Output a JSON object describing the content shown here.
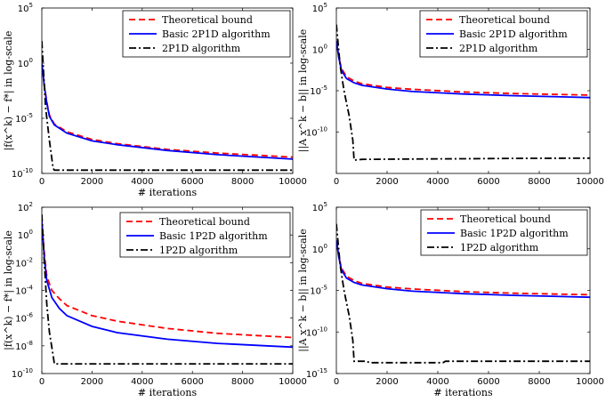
{
  "chart_data": [
    {
      "type": "line",
      "ylabel": "|f(x^k) − f*| in log-scale",
      "xlabel": "# iterations",
      "xlim": [
        0,
        10000
      ],
      "ylim": [
        1e-10,
        100000.0
      ],
      "yscale": "log",
      "x_ticks": [
        "0",
        "2000",
        "4000",
        "6000",
        "8000",
        "10000"
      ],
      "y_ticks": [
        {
          "v": 100000.0,
          "b": "10",
          "e": "5"
        },
        {
          "v": 1,
          "b": "10",
          "e": "0"
        },
        {
          "v": 1e-05,
          "b": "10",
          "e": "-5"
        },
        {
          "v": 1e-10,
          "b": "10",
          "e": "-10"
        }
      ],
      "legend_position": "top-right",
      "series": [
        {
          "name": "Theoretical bound",
          "color": "#ff0000",
          "dash": "dashed",
          "x": [
            1,
            100,
            200,
            300,
            500,
            1000,
            2000,
            3000,
            5000,
            7000,
            10000
          ],
          "y": [
            1,
            0.01,
            0.0003,
            2e-05,
            3e-06,
            6e-07,
            1.2e-07,
            5e-08,
            1.5e-08,
            7e-09,
            3e-09
          ]
        },
        {
          "name": "Basic 2P1D algorithm",
          "color": "#0000ff",
          "dash": "solid",
          "x": [
            1,
            100,
            200,
            300,
            500,
            1000,
            2000,
            3000,
            5000,
            7000,
            10000
          ],
          "y": [
            1,
            0.008,
            0.00025,
            1.5e-05,
            2.5e-06,
            4.5e-07,
            9e-08,
            4e-08,
            1.2e-08,
            5e-09,
            2e-09
          ]
        },
        {
          "name": "2P1D algorithm",
          "color": "#000000",
          "dash": "dashdot",
          "x": [
            1,
            150,
            300,
            450,
            500,
            1000,
            5000,
            10000
          ],
          "y": [
            100,
            0.0001,
            1e-07,
            3e-10,
            2e-10,
            2e-10,
            2e-10,
            2e-10
          ]
        }
      ]
    },
    {
      "type": "line",
      "ylabel": "||A x^k − b|| in log-scale",
      "xlabel": "",
      "xlim": [
        0,
        10000
      ],
      "ylim": [
        1e-15,
        100000.0
      ],
      "yscale": "log",
      "x_ticks": [
        "0",
        "2000",
        "4000",
        "6000",
        "8000",
        "10000"
      ],
      "y_ticks": [
        {
          "v": 100000.0,
          "b": "10",
          "e": "5"
        },
        {
          "v": 1,
          "b": "10",
          "e": "0"
        },
        {
          "v": 1e-05,
          "b": "10",
          "e": "-5"
        },
        {
          "v": 1e-10,
          "b": "10",
          "e": "-10"
        }
      ],
      "legend_position": "top-right",
      "series": [
        {
          "name": "Theoretical bound",
          "color": "#ff0000",
          "dash": "dashed",
          "x": [
            1,
            100,
            200,
            400,
            700,
            1000,
            2000,
            3000,
            5000,
            7000,
            10000
          ],
          "y": [
            10,
            0.1,
            0.005,
            0.0005,
            0.00015,
            7e-05,
            2.5e-05,
            1.5e-05,
            7e-06,
            4.5e-06,
            3e-06
          ]
        },
        {
          "name": "Basic 2P1D algorithm",
          "color": "#0000ff",
          "dash": "solid",
          "x": [
            1,
            100,
            200,
            400,
            700,
            1000,
            2000,
            3000,
            5000,
            7000,
            10000
          ],
          "y": [
            10,
            0.08,
            0.003,
            0.0003,
            9e-05,
            4.5e-05,
            1.6e-05,
            8e-06,
            4e-06,
            2.5e-06,
            1.5e-06
          ]
        },
        {
          "name": "2P1D algorithm",
          "color": "#000000",
          "dash": "dashdot",
          "x": [
            1,
            150,
            300,
            500,
            650,
            700,
            1000,
            3000,
            5000,
            7000,
            10000
          ],
          "y": [
            1000,
            0.01,
            1e-05,
            1e-08,
            1e-11,
            4e-14,
            5e-14,
            5.5e-14,
            6e-14,
            6.5e-14,
            7e-14
          ]
        }
      ]
    },
    {
      "type": "line",
      "ylabel": "|f(x^k) − f*| in log-scale",
      "xlabel": "# iterations",
      "xlim": [
        0,
        10000
      ],
      "ylim": [
        1e-10,
        100
      ],
      "yscale": "log",
      "x_ticks": [
        "0",
        "2000",
        "4000",
        "6000",
        "8000",
        "10000"
      ],
      "y_ticks": [
        {
          "v": 100,
          "b": "10",
          "e": "2"
        },
        {
          "v": 1,
          "b": "10",
          "e": "0"
        },
        {
          "v": 0.01,
          "b": "10",
          "e": "-2"
        },
        {
          "v": 0.0001,
          "b": "10",
          "e": "-4"
        },
        {
          "v": 1e-06,
          "b": "10",
          "e": "-6"
        },
        {
          "v": 1e-08,
          "b": "10",
          "e": "-8"
        },
        {
          "v": 1e-10,
          "b": "10",
          "e": "-10"
        }
      ],
      "legend_position": "top-right",
      "series": [
        {
          "name": "Theoretical bound",
          "color": "#ff0000",
          "dash": "dashed",
          "x": [
            1,
            100,
            200,
            400,
            700,
            1000,
            2000,
            3000,
            5000,
            7000,
            10000
          ],
          "y": [
            10,
            0.05,
            0.001,
            0.0001,
            2.5e-05,
            8e-06,
            1.5e-06,
            6e-07,
            1.8e-07,
            8e-08,
            4e-08
          ]
        },
        {
          "name": "Basic 1P2D algorithm",
          "color": "#0000ff",
          "dash": "solid",
          "x": [
            1,
            100,
            200,
            400,
            700,
            1000,
            2000,
            3000,
            5000,
            7000,
            10000
          ],
          "y": [
            10,
            0.02,
            0.0005,
            3e-05,
            5e-06,
            1.5e-06,
            2.5e-07,
            9e-08,
            3e-08,
            1.5e-08,
            8e-09
          ]
        },
        {
          "name": "1P2D algorithm",
          "color": "#000000",
          "dash": "dashdot",
          "x": [
            1,
            100,
            200,
            300,
            450,
            500,
            1000,
            5000,
            10000
          ],
          "y": [
            30,
            0.01,
            1e-05,
            1e-07,
            2e-09,
            5e-10,
            5e-10,
            5e-10,
            5e-10
          ]
        }
      ]
    },
    {
      "type": "line",
      "ylabel": "||A x^k − b|| in log-scale",
      "xlabel": "# iterations",
      "xlim": [
        0,
        10000
      ],
      "ylim": [
        1e-15,
        100000.0
      ],
      "yscale": "log",
      "x_ticks": [
        "0",
        "2000",
        "4000",
        "6000",
        "8000",
        "10000"
      ],
      "y_ticks": [
        {
          "v": 100000.0,
          "b": "10",
          "e": "5"
        },
        {
          "v": 1,
          "b": "10",
          "e": "0"
        },
        {
          "v": 1e-05,
          "b": "10",
          "e": "-5"
        },
        {
          "v": 1e-10,
          "b": "10",
          "e": "-10"
        },
        {
          "v": 1e-15,
          "b": "10",
          "e": "-15"
        }
      ],
      "legend_position": "top-right",
      "series": [
        {
          "name": "Theoretical bound",
          "color": "#ff0000",
          "dash": "dashed",
          "x": [
            1,
            100,
            200,
            400,
            700,
            1000,
            2000,
            3000,
            5000,
            7000,
            10000
          ],
          "y": [
            10,
            0.1,
            0.005,
            0.0005,
            0.00015,
            7e-05,
            2.5e-05,
            1.5e-05,
            7e-06,
            4.5e-06,
            3e-06
          ]
        },
        {
          "name": "Basic 1P2D algorithm",
          "color": "#0000ff",
          "dash": "solid",
          "x": [
            1,
            100,
            200,
            400,
            700,
            1000,
            2000,
            3000,
            5000,
            7000,
            10000
          ],
          "y": [
            10,
            0.08,
            0.003,
            0.0003,
            9e-05,
            4.5e-05,
            1.6e-05,
            8e-06,
            4e-06,
            2.5e-06,
            1.5e-06
          ]
        },
        {
          "name": "1P2D algorithm",
          "color": "#000000",
          "dash": "dashdot",
          "x": [
            1,
            150,
            300,
            500,
            650,
            700,
            1000,
            1200,
            1300,
            4200,
            4300,
            7000,
            10000
          ],
          "y": [
            1000,
            0.01,
            1e-05,
            1e-08,
            1e-11,
            3e-14,
            3e-14,
            3e-14,
            2e-14,
            2e-14,
            3e-14,
            3e-14,
            3e-14
          ]
        }
      ]
    }
  ]
}
